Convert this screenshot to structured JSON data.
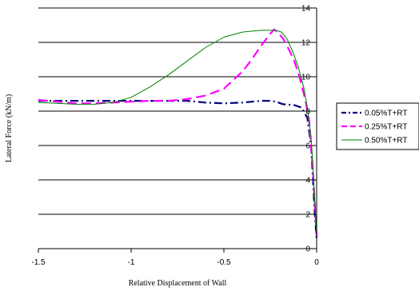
{
  "chart_data": {
    "type": "line",
    "title": "",
    "xlabel": "Relative Displacement of Wall",
    "ylabel": "Lateral Force (kN/m)",
    "xlim": [
      -1.5,
      0
    ],
    "ylim": [
      0,
      14
    ],
    "xticks": [
      "-1.5",
      "-1",
      "-0.5",
      "0"
    ],
    "yticks": [
      "0",
      "2",
      "4",
      "6",
      "8",
      "10",
      "12",
      "14"
    ],
    "grid": "horizontal",
    "legend_position": "right",
    "series": [
      {
        "name": "0.05%T+RT",
        "color": "#000080",
        "style": "dash-dot",
        "x": [
          -1.5,
          -1.3,
          -1.1,
          -0.9,
          -0.7,
          -0.6,
          -0.5,
          -0.4,
          -0.3,
          -0.25,
          -0.22,
          -0.18,
          -0.12,
          -0.08,
          -0.05,
          -0.03,
          -0.02,
          -0.01,
          0
        ],
        "y": [
          8.6,
          8.6,
          8.6,
          8.6,
          8.6,
          8.5,
          8.45,
          8.5,
          8.6,
          8.6,
          8.55,
          8.4,
          8.35,
          8.2,
          7.6,
          6.0,
          4.0,
          2.0,
          0.6
        ]
      },
      {
        "name": "0.25%T+RT",
        "color": "#ff00ff",
        "style": "dashed",
        "x": [
          -1.5,
          -1.4,
          -1.3,
          -1.2,
          -1.1,
          -1.0,
          -0.9,
          -0.8,
          -0.7,
          -0.6,
          -0.5,
          -0.4,
          -0.35,
          -0.3,
          -0.25,
          -0.23,
          -0.21,
          -0.18,
          -0.15,
          -0.12,
          -0.09,
          -0.06,
          -0.04,
          -0.03,
          -0.02,
          -0.01,
          0
        ],
        "y": [
          8.65,
          8.55,
          8.45,
          8.45,
          8.5,
          8.55,
          8.6,
          8.6,
          8.7,
          8.9,
          9.3,
          10.3,
          11.0,
          11.8,
          12.5,
          12.75,
          12.6,
          12.2,
          11.6,
          10.9,
          9.9,
          8.6,
          7.4,
          6.0,
          4.5,
          2.6,
          0.7
        ]
      },
      {
        "name": "0.50%T+RT",
        "color": "#008000",
        "style": "solid",
        "x": [
          -1.5,
          -1.4,
          -1.3,
          -1.2,
          -1.1,
          -1.0,
          -0.9,
          -0.8,
          -0.7,
          -0.6,
          -0.5,
          -0.4,
          -0.3,
          -0.25,
          -0.22,
          -0.19,
          -0.16,
          -0.13,
          -0.1,
          -0.07,
          -0.05,
          -0.03,
          -0.02,
          -0.01,
          0
        ],
        "y": [
          8.5,
          8.45,
          8.4,
          8.4,
          8.5,
          8.8,
          9.4,
          10.1,
          10.9,
          11.7,
          12.3,
          12.6,
          12.7,
          12.7,
          12.7,
          12.6,
          12.2,
          11.5,
          10.6,
          9.4,
          8.2,
          6.5,
          4.8,
          2.8,
          0.8
        ]
      }
    ]
  }
}
